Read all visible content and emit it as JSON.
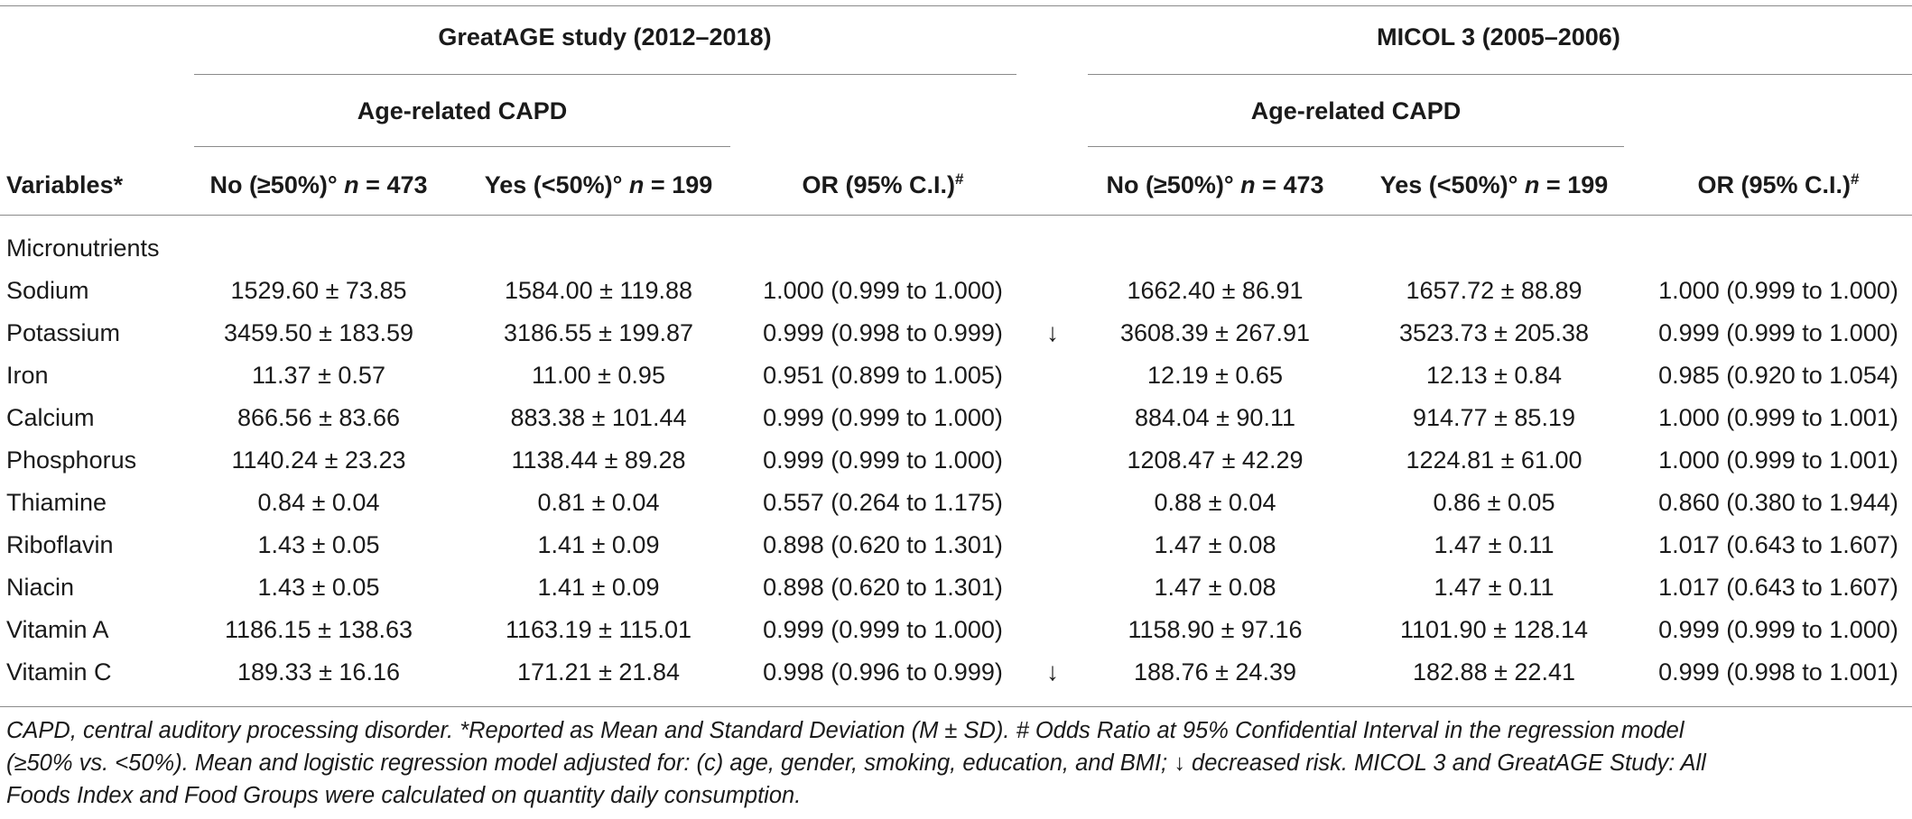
{
  "header": {
    "study1_title": "GreatAGE study (2012–2018)",
    "study2_title": "MICOL 3 (2005–2006)",
    "group_label_1": "Age-related CAPD",
    "group_label_2": "Age-related CAPD",
    "variables_label": "Variables*",
    "no_label": "No (≥50%)°",
    "yes_label": "Yes (<50%)°",
    "n_var": "n",
    "n_no_value": "= 473",
    "n_yes_value": "= 199",
    "or_label": "OR (95% C.I.)",
    "or_sup": "#"
  },
  "section_label": "Micronutrients",
  "rows": [
    {
      "name": "Sodium",
      "g_no": "1529.60 ± 73.85",
      "g_yes": "1584.00 ± 119.88",
      "g_or": "1.000 (0.999 to 1.000)",
      "arrow": "",
      "m_no": "1662.40 ± 86.91",
      "m_yes": "1657.72 ± 88.89",
      "m_or": "1.000 (0.999 to 1.000)"
    },
    {
      "name": "Potassium",
      "g_no": "3459.50 ± 183.59",
      "g_yes": "3186.55 ± 199.87",
      "g_or": "0.999 (0.998 to 0.999)",
      "arrow": "↓",
      "m_no": "3608.39 ± 267.91",
      "m_yes": "3523.73 ± 205.38",
      "m_or": "0.999 (0.999 to 1.000)"
    },
    {
      "name": "Iron",
      "g_no": "11.37 ± 0.57",
      "g_yes": "11.00 ± 0.95",
      "g_or": "0.951 (0.899 to 1.005)",
      "arrow": "",
      "m_no": "12.19 ± 0.65",
      "m_yes": "12.13 ± 0.84",
      "m_or": "0.985 (0.920 to 1.054)"
    },
    {
      "name": "Calcium",
      "g_no": "866.56 ± 83.66",
      "g_yes": "883.38 ± 101.44",
      "g_or": "0.999 (0.999 to 1.000)",
      "arrow": "",
      "m_no": "884.04 ± 90.11",
      "m_yes": "914.77 ± 85.19",
      "m_or": "1.000 (0.999 to 1.001)"
    },
    {
      "name": "Phosphorus",
      "g_no": "1140.24 ± 23.23",
      "g_yes": "1138.44 ± 89.28",
      "g_or": "0.999 (0.999 to 1.000)",
      "arrow": "",
      "m_no": "1208.47 ± 42.29",
      "m_yes": "1224.81 ± 61.00",
      "m_or": "1.000 (0.999 to 1.001)"
    },
    {
      "name": "Thiamine",
      "g_no": "0.84 ± 0.04",
      "g_yes": "0.81 ± 0.04",
      "g_or": "0.557 (0.264 to 1.175)",
      "arrow": "",
      "m_no": "0.88 ± 0.04",
      "m_yes": "0.86 ± 0.05",
      "m_or": "0.860 (0.380 to 1.944)"
    },
    {
      "name": "Riboflavin",
      "g_no": "1.43 ± 0.05",
      "g_yes": "1.41 ± 0.09",
      "g_or": "0.898 (0.620 to 1.301)",
      "arrow": "",
      "m_no": "1.47 ± 0.08",
      "m_yes": "1.47 ± 0.11",
      "m_or": "1.017 (0.643 to 1.607)"
    },
    {
      "name": "Niacin",
      "g_no": "1.43 ± 0.05",
      "g_yes": "1.41 ± 0.09",
      "g_or": "0.898 (0.620 to 1.301)",
      "arrow": "",
      "m_no": "1.47 ± 0.08",
      "m_yes": "1.47 ± 0.11",
      "m_or": "1.017 (0.643 to 1.607)"
    },
    {
      "name": "Vitamin A",
      "g_no": "1186.15 ± 138.63",
      "g_yes": "1163.19 ± 115.01",
      "g_or": "0.999 (0.999 to 1.000)",
      "arrow": "",
      "m_no": "1158.90 ± 97.16",
      "m_yes": "1101.90 ± 128.14",
      "m_or": "0.999 (0.999 to 1.000)"
    },
    {
      "name": "Vitamin C",
      "g_no": "189.33 ± 16.16",
      "g_yes": "171.21 ± 21.84",
      "g_or": "0.998 (0.996 to 0.999)",
      "arrow": "↓",
      "m_no": "188.76 ± 24.39",
      "m_yes": "182.88 ± 22.41",
      "m_or": "0.999 (0.998 to 1.001)"
    }
  ],
  "footnote": {
    "line1": "CAPD, central auditory processing disorder. *Reported as Mean and Standard Deviation (M ± SD). # Odds Ratio at 95% Confidential Interval in the regression model",
    "line2": "(≥50% vs. <50%). Mean and logistic regression model adjusted for: (c) age, gender, smoking, education, and BMI; ↓ decreased risk. MICOL 3 and GreatAGE Study: All",
    "line3": "Foods Index and Food Groups were calculated on quantity daily consumption."
  }
}
